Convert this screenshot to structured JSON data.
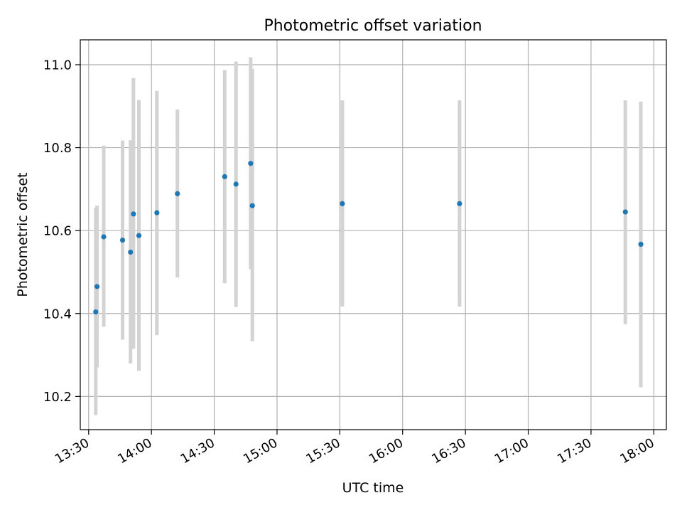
{
  "chart_data": {
    "type": "scatter",
    "title": "Photometric offset variation",
    "xlabel": "UTC time",
    "ylabel": "Photometric offset",
    "x_axis": {
      "type": "time",
      "range": [
        "13:26",
        "18:06"
      ],
      "ticks": [
        "13:30",
        "14:00",
        "14:30",
        "15:00",
        "15:30",
        "16:00",
        "16:30",
        "17:00",
        "17:30",
        "18:00"
      ],
      "tick_label_rotation": 30
    },
    "y_axis": {
      "range": [
        10.12,
        11.06
      ],
      "ticks": [
        10.2,
        10.4,
        10.6,
        10.8,
        11.0
      ],
      "tick_labels": [
        "10.2",
        "10.4",
        "10.6",
        "10.8",
        "11.0"
      ]
    },
    "grid": true,
    "marker_color": "#1f77b4",
    "error_bar_color": "#d3d3d3",
    "points": [
      {
        "time": "13:33:24",
        "value": 10.404,
        "lower": 10.155,
        "upper": 10.655
      },
      {
        "time": "13:34:00",
        "value": 10.465,
        "lower": 10.27,
        "upper": 10.66
      },
      {
        "time": "13:37:12",
        "value": 10.585,
        "lower": 10.368,
        "upper": 10.805
      },
      {
        "time": "13:46:12",
        "value": 10.577,
        "lower": 10.337,
        "upper": 10.817
      },
      {
        "time": "13:50:00",
        "value": 10.548,
        "lower": 10.28,
        "upper": 10.818
      },
      {
        "time": "13:51:24",
        "value": 10.64,
        "lower": 10.315,
        "upper": 10.968
      },
      {
        "time": "13:54:00",
        "value": 10.588,
        "lower": 10.262,
        "upper": 10.915
      },
      {
        "time": "14:02:36",
        "value": 10.643,
        "lower": 10.348,
        "upper": 10.937
      },
      {
        "time": "14:12:24",
        "value": 10.689,
        "lower": 10.487,
        "upper": 10.892
      },
      {
        "time": "14:35:00",
        "value": 10.73,
        "lower": 10.473,
        "upper": 10.987
      },
      {
        "time": "14:40:24",
        "value": 10.712,
        "lower": 10.416,
        "upper": 11.008
      },
      {
        "time": "14:47:24",
        "value": 10.762,
        "lower": 10.507,
        "upper": 11.018
      },
      {
        "time": "14:48:12",
        "value": 10.66,
        "lower": 10.333,
        "upper": 10.99
      },
      {
        "time": "15:31:12",
        "value": 10.665,
        "lower": 10.417,
        "upper": 10.914
      },
      {
        "time": "16:27:12",
        "value": 10.665,
        "lower": 10.417,
        "upper": 10.914
      },
      {
        "time": "17:46:24",
        "value": 10.645,
        "lower": 10.374,
        "upper": 10.914
      },
      {
        "time": "17:53:48",
        "value": 10.567,
        "lower": 10.222,
        "upper": 10.911
      }
    ]
  }
}
